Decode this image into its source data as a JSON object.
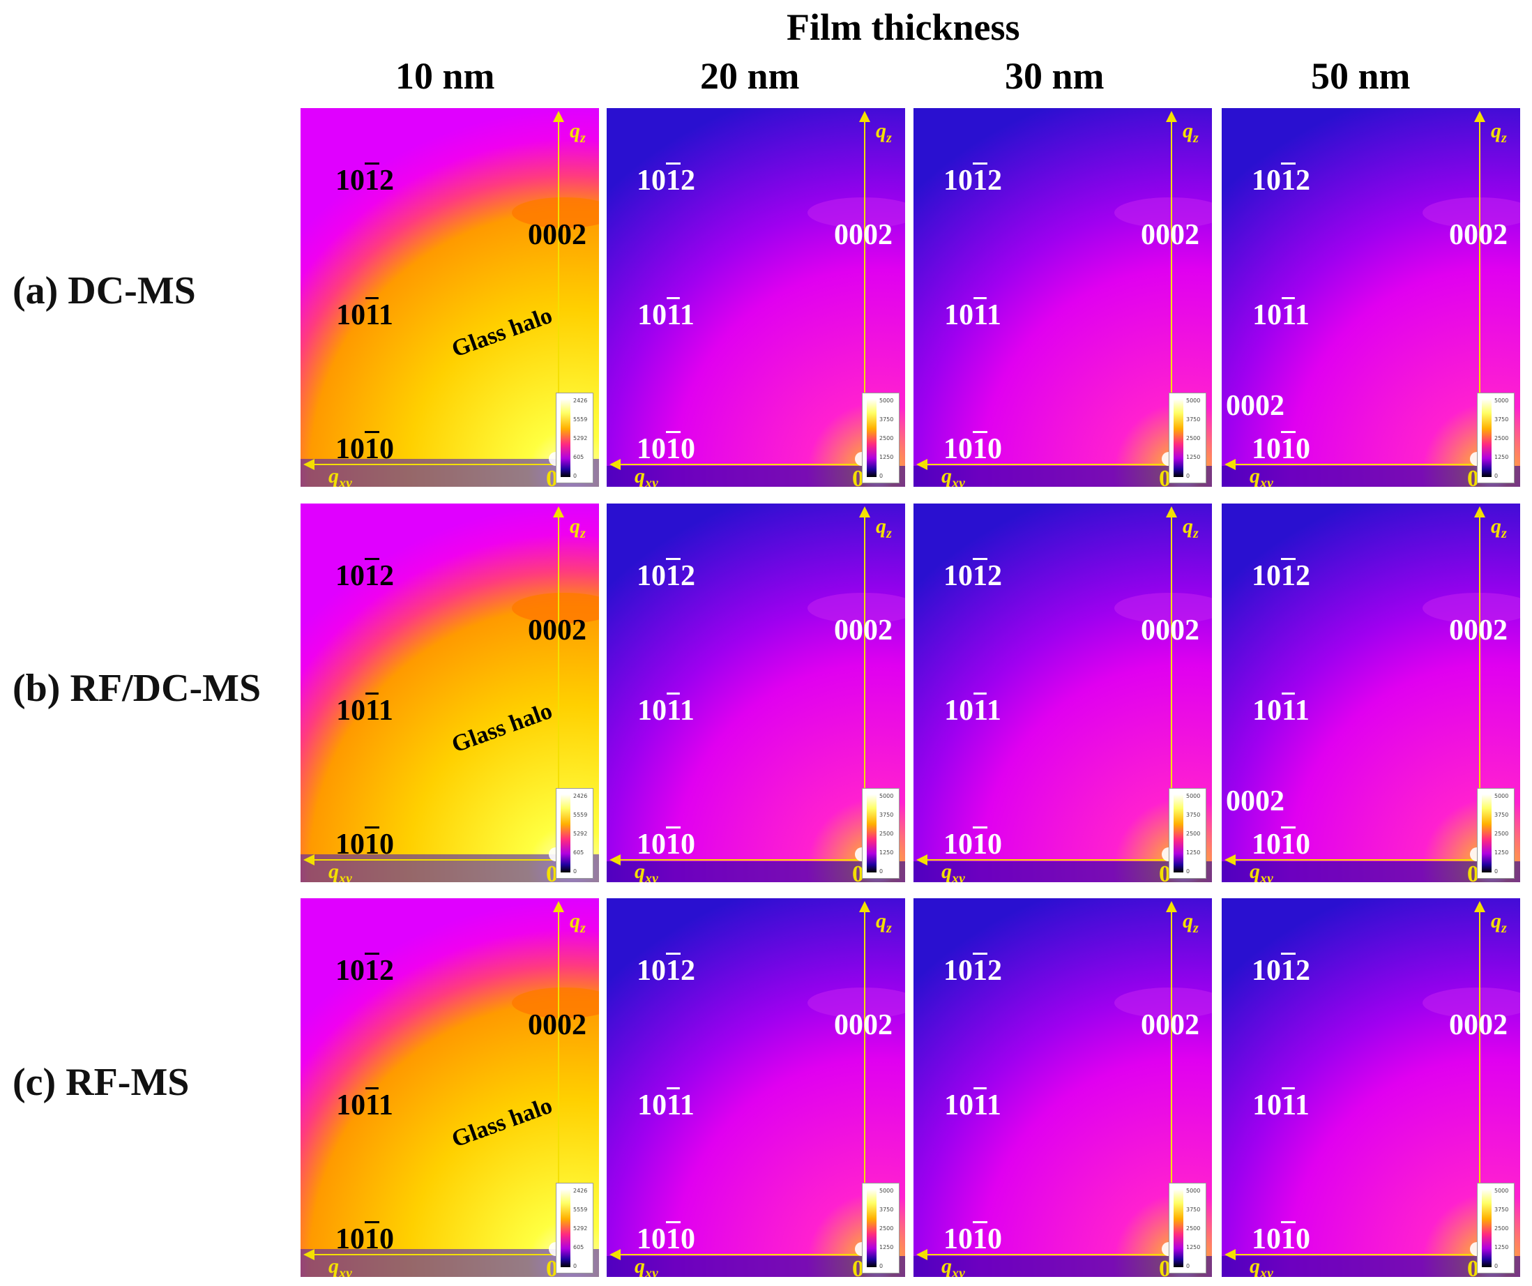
{
  "header": {
    "title": "Film thickness",
    "columns": [
      "10 nm",
      "20 nm",
      "30 nm",
      "50 nm"
    ]
  },
  "rows": [
    {
      "label": "(a) DC-MS"
    },
    {
      "label": "(b) RF/DC-MS"
    },
    {
      "label": "(c) RF-MS"
    }
  ],
  "panel_text": {
    "axis_qz": "q",
    "axis_qz_sub": "z",
    "axis_qxy": "q",
    "axis_qxy_sub": "xy",
    "origin": "0",
    "glass_halo": "Glass halo",
    "peak_1012": "1012",
    "peak_0002": "0002",
    "peak_1011": "1011",
    "peak_1010": "1010",
    "extra_0002": "0002"
  },
  "colorbar_ticks": {
    "hot": [
      "2426",
      "5559",
      "5292",
      "605",
      "0"
    ],
    "cool": [
      "5000",
      "3750",
      "2500",
      "1250",
      "0"
    ]
  },
  "colors": {
    "hot_bg": "#f000f0",
    "cool_bg": "#5a10e8",
    "axis": "#f4e000",
    "label_dark": "#000000",
    "label_light": "#ffffff"
  }
}
